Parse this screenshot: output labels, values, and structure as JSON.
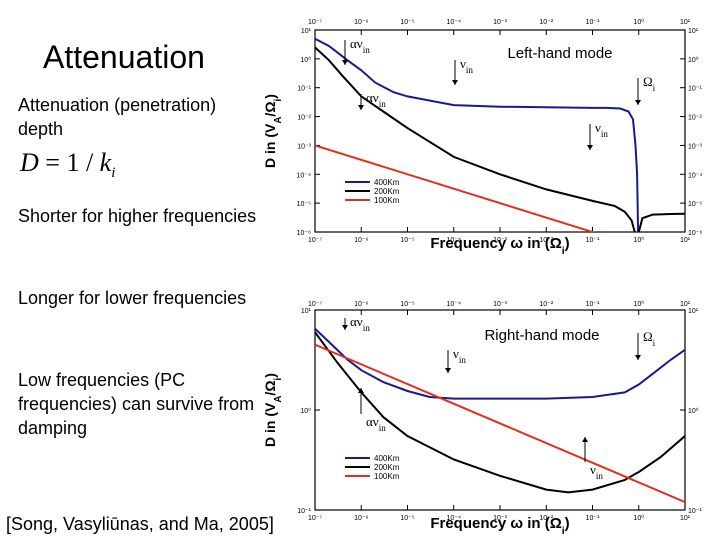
{
  "slide": {
    "title": "Attenuation",
    "subtitle": "Attenuation (penetration) depth",
    "formula_lhs": "D",
    "formula_eq": " = 1 / ",
    "formula_k": "k",
    "formula_sub": "i",
    "bullets": [
      "Shorter for higher frequencies",
      "Longer for lower frequencies",
      "Low frequencies (PC frequencies) can survive from damping"
    ],
    "citation": "[Song, Vasyliūnas, and Ma, 2005]"
  },
  "chart_data": [
    {
      "type": "line",
      "title": "Left-hand mode",
      "xlabel": "Frequency ω in (Ω",
      "xlabel_sub": "i",
      "xlabel_close": ")",
      "ylabel": "D in (V",
      "ylabel_sub": "A",
      "ylabel_mid": "/Ω",
      "ylabel_sub2": "i",
      "ylabel_close": ")",
      "x_scale": "log",
      "y_scale": "log",
      "xlim": [
        1e-07,
        10
      ],
      "ylim": [
        1e-06,
        10
      ],
      "xtick_labels": [
        "10⁻⁷",
        "10⁻⁶",
        "10⁻⁵",
        "10⁻⁴",
        "10⁻³",
        "10⁻²",
        "10⁻¹",
        "10⁰",
        "10¹"
      ],
      "ytick_labels": [
        "10¹",
        "10⁰",
        "10⁻¹",
        "10⁻²",
        "10⁻³",
        "10⁻⁴",
        "10⁻⁵",
        "10⁻⁶"
      ],
      "legend_position": "bottom-left",
      "series": [
        {
          "name": "400Km",
          "color": "#1a1a8c",
          "x": [
            1e-07,
            2e-07,
            3e-07,
            5e-07,
            1e-06,
            2e-06,
            5e-06,
            1e-05,
            0.0001,
            0.001,
            0.01,
            0.1,
            0.2,
            0.4,
            0.6,
            0.75,
            0.85,
            0.92,
            0.97
          ],
          "y": [
            5.0,
            2.8,
            1.7,
            0.9,
            0.4,
            0.15,
            0.07,
            0.05,
            0.025,
            0.022,
            0.021,
            0.02,
            0.02,
            0.019,
            0.015,
            0.008,
            0.001,
            0.0001,
            1e-06
          ]
        },
        {
          "name": "200Km",
          "color": "#000000",
          "x": [
            1e-07,
            2e-07,
            4e-07,
            1e-06,
            3e-06,
            1e-05,
            0.0001,
            0.001,
            0.01,
            0.1,
            0.3,
            0.5,
            0.7,
            0.85,
            0.95,
            1.0,
            1.2,
            2,
            5,
            10
          ],
          "y": [
            2.5,
            0.9,
            0.25,
            0.05,
            0.015,
            0.004,
            0.0004,
            0.0001,
            3e-05,
            1.2e-05,
            8e-06,
            5e-06,
            2.5e-06,
            8e-07,
            3e-07,
            1e-06,
            3e-06,
            4e-06,
            4.2e-06,
            4.3e-06
          ]
        },
        {
          "name": "100Km",
          "color": "#e03020",
          "x": [
            1e-07,
            10
          ],
          "y": [
            0.001,
            1e-07
          ]
        }
      ],
      "annotations": [
        {
          "text": "αν",
          "sub": "in",
          "x": 4e-07,
          "y": 1.2
        },
        {
          "text": "ν",
          "sub": "in",
          "x": 0.0005,
          "y": 0.05
        },
        {
          "text": "αν",
          "sub": "in",
          "x": 1.2e-06,
          "y": 0.001
        },
        {
          "text": "Ω",
          "sub": "i",
          "x": 0.45,
          "y": 0.003
        },
        {
          "text": "ν",
          "sub": "in",
          "x": 0.06,
          "y": 2e-06
        }
      ]
    },
    {
      "type": "line",
      "title": "Right-hand mode",
      "xlabel": "Frequency ω in (Ω",
      "xlabel_sub": "i",
      "xlabel_close": ")",
      "ylabel": "D in (V",
      "ylabel_sub": "A",
      "ylabel_mid": "/Ω",
      "ylabel_sub2": "i",
      "ylabel_close": ")",
      "x_scale": "log",
      "y_scale": "log",
      "xlim": [
        1e-07,
        10
      ],
      "ylim": [
        0.1,
        10
      ],
      "xtick_labels": [
        "10⁻⁷",
        "10⁻⁶",
        "10⁻⁵",
        "10⁻⁴",
        "10⁻³",
        "10⁻²",
        "10⁻¹",
        "10⁰",
        "10¹"
      ],
      "ytick_labels": [
        "10¹",
        "10⁰",
        "10⁻¹"
      ],
      "legend_position": "bottom-left",
      "series": [
        {
          "name": "400Km",
          "color": "#1a1a8c",
          "x": [
            1e-07,
            2e-07,
            5e-07,
            1e-06,
            3e-06,
            1e-05,
            3e-05,
            0.0001,
            0.001,
            0.01,
            0.1,
            0.5,
            1,
            2,
            5,
            10
          ],
          "y": [
            6.5,
            4.8,
            3.2,
            2.5,
            1.9,
            1.55,
            1.35,
            1.3,
            1.3,
            1.3,
            1.35,
            1.5,
            1.8,
            2.3,
            3.2,
            4.0
          ]
        },
        {
          "name": "200Km",
          "color": "#000000",
          "x": [
            1e-07,
            3e-07,
            1e-06,
            3e-06,
            1e-05,
            0.0001,
            0.001,
            0.01,
            0.03,
            0.1,
            0.5,
            1,
            3,
            10
          ],
          "y": [
            6.0,
            3.0,
            1.5,
            0.85,
            0.55,
            0.32,
            0.22,
            0.16,
            0.15,
            0.16,
            0.2,
            0.24,
            0.34,
            0.55
          ]
        },
        {
          "name": "100Km",
          "color": "#e03020",
          "x": [
            1e-07,
            10
          ],
          "y": [
            4.5,
            0.12
          ]
        }
      ],
      "annotations": [
        {
          "text": "αν",
          "sub": "in",
          "x": 5e-07,
          "y": 7
        },
        {
          "text": "ν",
          "sub": "in",
          "x": 0.0002,
          "y": 2.5
        },
        {
          "text": "αν",
          "sub": "in",
          "x": 3e-06,
          "y": 0.3
        },
        {
          "text": "Ω",
          "sub": "i",
          "x": 0.6,
          "y": 4.5
        },
        {
          "text": "ν",
          "sub": "in",
          "x": 0.05,
          "y": 0.12
        }
      ]
    }
  ]
}
